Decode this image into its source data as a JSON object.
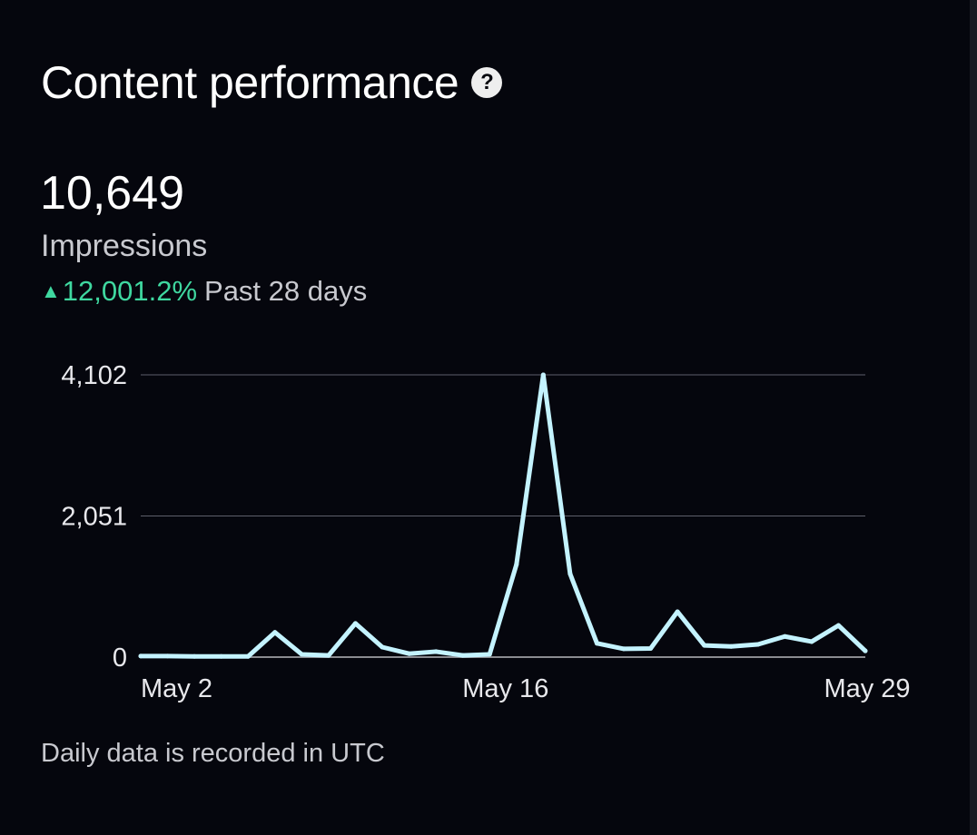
{
  "header": {
    "title": "Content performance",
    "help_icon": "question-circle-icon"
  },
  "summary": {
    "value": "10,649",
    "label": "Impressions",
    "change": "12,001.2%",
    "period": "Past 28 days",
    "change_color": "#3fd8a0"
  },
  "footer": {
    "note": "Daily data is recorded in UTC"
  },
  "chart_data": {
    "type": "line",
    "title": "Impressions",
    "x": [
      "May 2",
      "May 3",
      "May 4",
      "May 5",
      "May 6",
      "May 7",
      "May 8",
      "May 9",
      "May 10",
      "May 11",
      "May 12",
      "May 13",
      "May 14",
      "May 15",
      "May 16",
      "May 17",
      "May 18",
      "May 19",
      "May 20",
      "May 21",
      "May 22",
      "May 23",
      "May 24",
      "May 25",
      "May 26",
      "May 27",
      "May 28",
      "May 29"
    ],
    "series": [
      {
        "name": "Impressions",
        "color": "#c4f3ff",
        "values": [
          15,
          15,
          10,
          10,
          10,
          360,
          40,
          25,
          490,
          145,
          50,
          80,
          25,
          40,
          1345,
          4102,
          1210,
          200,
          120,
          125,
          660,
          170,
          155,
          185,
          300,
          225,
          460,
          90
        ]
      }
    ],
    "ylim": [
      0,
      4102
    ],
    "yticks": [
      "0",
      "2,051",
      "4,102"
    ],
    "ytick_values": [
      0,
      2051,
      4102
    ],
    "xticks": [
      {
        "label": "May 2",
        "index": 0
      },
      {
        "label": "May 16",
        "index": 14
      },
      {
        "label": "May 29",
        "index": 27
      }
    ],
    "grid": true
  }
}
